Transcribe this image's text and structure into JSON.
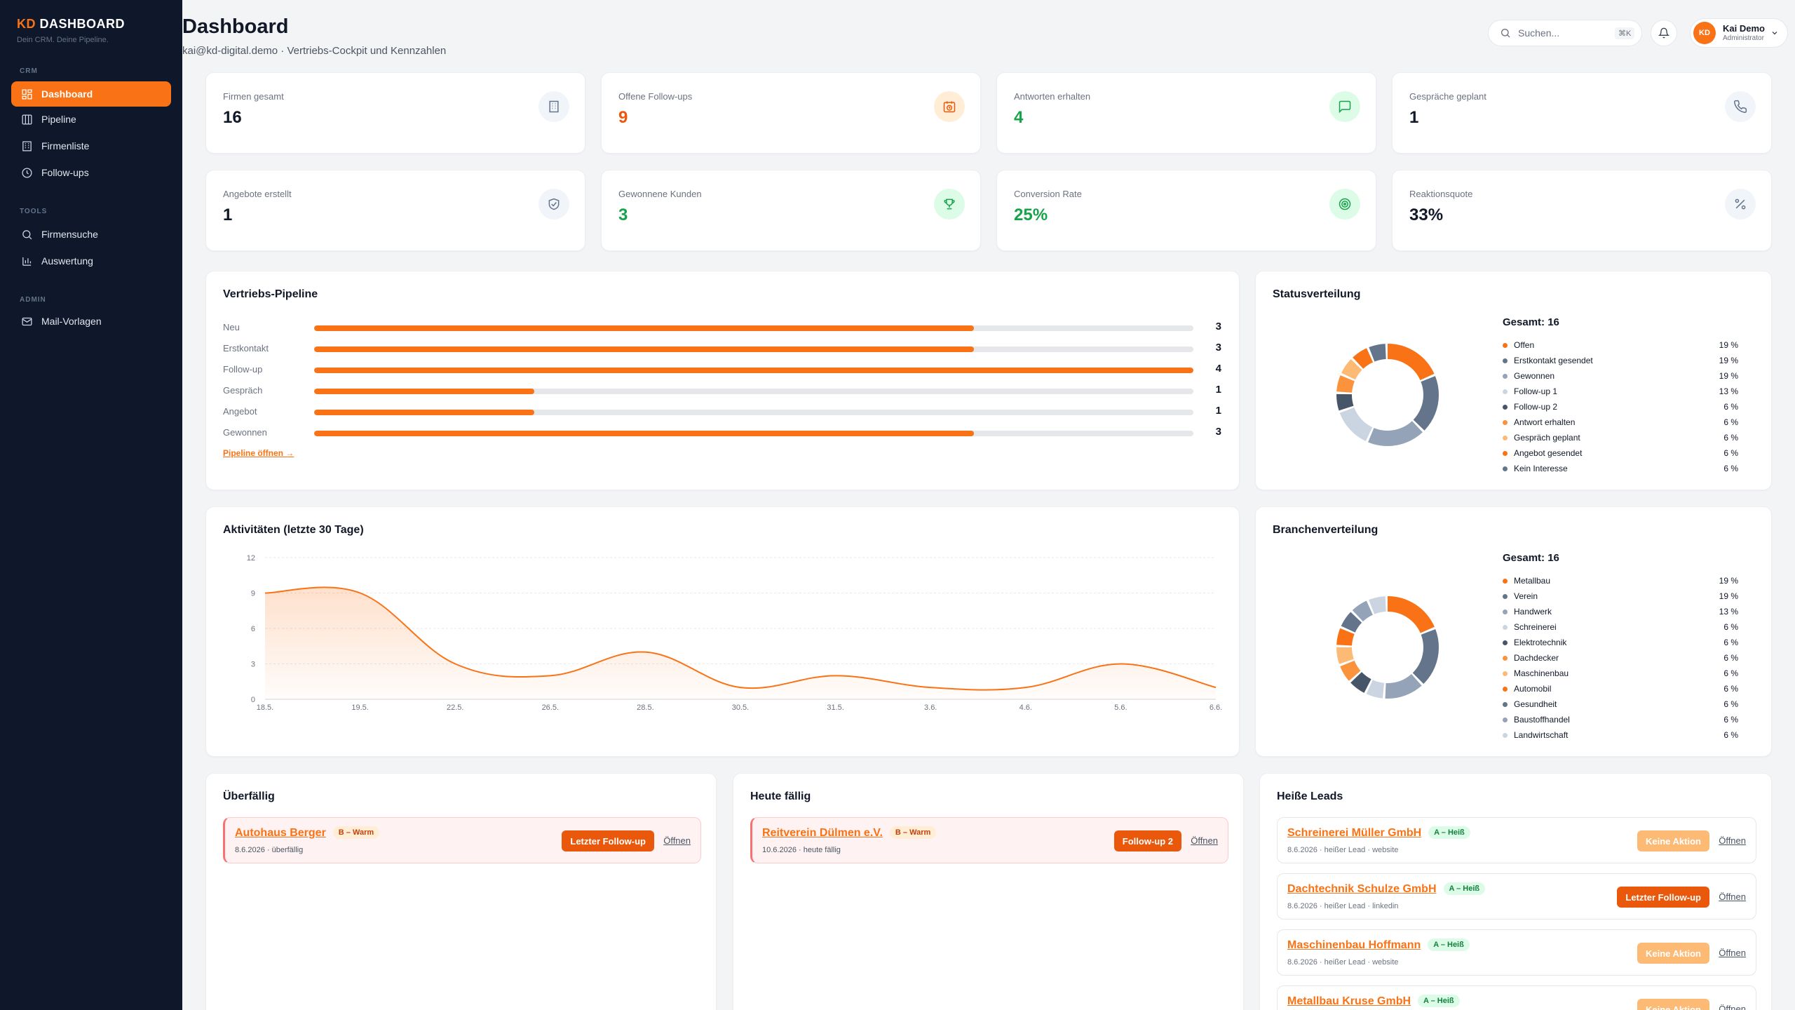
{
  "brand": {
    "prefix": "KD",
    "name": "DASHBOARD",
    "tagline": "Dein CRM. Deine Pipeline."
  },
  "sidebar": {
    "sections": [
      "CRM",
      "TOOLS",
      "ADMIN"
    ],
    "items": [
      {
        "label": "Dashboard",
        "icon": "dashboard-icon",
        "active": true
      },
      {
        "label": "Pipeline",
        "icon": "columns-icon"
      },
      {
        "label": "Firmenliste",
        "icon": "building-icon"
      },
      {
        "label": "Follow-ups",
        "icon": "clock-icon"
      },
      {
        "label": "Firmensuche",
        "icon": "search-icon"
      },
      {
        "label": "Auswertung",
        "icon": "bar-chart-icon"
      },
      {
        "label": "Mail-Vorlagen",
        "icon": "mail-icon"
      }
    ]
  },
  "header": {
    "title": "Dashboard",
    "subtitle": "kai@kd-digital.demo · Vertriebs-Cockpit und Kennzahlen",
    "search_placeholder": "Suchen...",
    "search_shortcut": "⌘K",
    "user_initials": "KD",
    "user_name": "Kai Demo",
    "user_role": "Administrator"
  },
  "kpis": [
    {
      "label": "Firmen gesamt",
      "value": "16",
      "icon": "building-icon"
    },
    {
      "label": "Offene Follow-ups",
      "value": "9",
      "icon": "calendar-clock-icon"
    },
    {
      "label": "Antworten erhalten",
      "value": "4",
      "icon": "message-icon"
    },
    {
      "label": "Gespräche geplant",
      "value": "1",
      "icon": "phone-icon"
    },
    {
      "label": "Angebote erstellt",
      "value": "1",
      "icon": "handshake-icon"
    },
    {
      "label": "Gewonnene Kunden",
      "value": "3",
      "icon": "trophy-icon"
    },
    {
      "label": "Conversion Rate",
      "value": "25%",
      "icon": "target-icon"
    },
    {
      "label": "Reaktionsquote",
      "value": "33%",
      "icon": "percent-icon"
    }
  ],
  "pipeline": {
    "title": "Vertriebs-Pipeline",
    "link": "Pipeline öffnen →",
    "max": 4,
    "stages": [
      {
        "label": "Neu",
        "count": 3
      },
      {
        "label": "Erstkontakt",
        "count": 3
      },
      {
        "label": "Follow-up",
        "count": 4
      },
      {
        "label": "Gespräch",
        "count": 1
      },
      {
        "label": "Angebot",
        "count": 1
      },
      {
        "label": "Gewonnen",
        "count": 3
      }
    ]
  },
  "status": {
    "title": "Statusverteilung",
    "total": "Gesamt: 16",
    "items": [
      {
        "label": "Offen",
        "pct": "19 %",
        "value": 19,
        "color": "#f97316"
      },
      {
        "label": "Erstkontakt gesendet",
        "pct": "19 %",
        "value": 19,
        "color": "#64748b"
      },
      {
        "label": "Gewonnen",
        "pct": "19 %",
        "value": 19,
        "color": "#94a3b8"
      },
      {
        "label": "Follow-up 1",
        "pct": "13 %",
        "value": 13,
        "color": "#cbd5e1"
      },
      {
        "label": "Follow-up 2",
        "pct": "6 %",
        "value": 6,
        "color": "#475569"
      },
      {
        "label": "Antwort erhalten",
        "pct": "6 %",
        "value": 6,
        "color": "#fb923c"
      },
      {
        "label": "Gespräch geplant",
        "pct": "6 %",
        "value": 6,
        "color": "#fdba74"
      },
      {
        "label": "Angebot gesendet",
        "pct": "6 %",
        "value": 6,
        "color": "#f97316"
      },
      {
        "label": "Kein Interesse",
        "pct": "6 %",
        "value": 6,
        "color": "#64748b"
      }
    ]
  },
  "branches": {
    "title": "Branchenverteilung",
    "total": "Gesamt: 16",
    "items": [
      {
        "label": "Metallbau",
        "pct": "19 %",
        "value": 19,
        "color": "#f97316"
      },
      {
        "label": "Verein",
        "pct": "19 %",
        "value": 19,
        "color": "#64748b"
      },
      {
        "label": "Handwerk",
        "pct": "13 %",
        "value": 13,
        "color": "#94a3b8"
      },
      {
        "label": "Schreinerei",
        "pct": "6 %",
        "value": 6,
        "color": "#cbd5e1"
      },
      {
        "label": "Elektrotechnik",
        "pct": "6 %",
        "value": 6,
        "color": "#475569"
      },
      {
        "label": "Dachdecker",
        "pct": "6 %",
        "value": 6,
        "color": "#fb923c"
      },
      {
        "label": "Maschinenbau",
        "pct": "6 %",
        "value": 6,
        "color": "#fdba74"
      },
      {
        "label": "Automobil",
        "pct": "6 %",
        "value": 6,
        "color": "#f97316"
      },
      {
        "label": "Gesundheit",
        "pct": "6 %",
        "value": 6,
        "color": "#64748b"
      },
      {
        "label": "Baustoffhandel",
        "pct": "6 %",
        "value": 6,
        "color": "#94a3b8"
      },
      {
        "label": "Landwirtschaft",
        "pct": "6 %",
        "value": 6,
        "color": "#cbd5e1"
      }
    ]
  },
  "chart_data": {
    "type": "area",
    "title": "Aktivitäten (letzte 30 Tage)",
    "categories": [
      "18.5.",
      "19.5.",
      "22.5.",
      "26.5.",
      "28.5.",
      "30.5.",
      "31.5.",
      "3.6.",
      "4.6.",
      "5.6.",
      "6.6."
    ],
    "values": [
      9,
      9,
      3,
      2,
      4,
      1,
      2,
      1,
      1,
      3,
      1
    ],
    "yticks": [
      0,
      3,
      6,
      9,
      12
    ],
    "ylim": [
      0,
      12
    ],
    "grid": true,
    "color": "#f97316"
  },
  "overdue": {
    "title": "Überfällig",
    "items": [
      {
        "name": "Autohaus Berger",
        "badge": "B – Warm",
        "meta": "8.6.2026 · überfällig",
        "action": "Letzter Follow-up",
        "open": "Öffnen"
      }
    ]
  },
  "today": {
    "title": "Heute fällig",
    "items": [
      {
        "name": "Reitverein Dülmen e.V.",
        "badge": "B – Warm",
        "meta": "10.6.2026 · heute fällig",
        "action": "Follow-up 2",
        "open": "Öffnen"
      }
    ]
  },
  "hot_leads": {
    "title": "Heiße Leads",
    "items": [
      {
        "name": "Schreinerei Müller GmbH",
        "badge": "A – Heiß",
        "meta": "8.6.2026 · heißer Lead · website",
        "action": "Keine Aktion",
        "action_style": "muted",
        "open": "Öffnen"
      },
      {
        "name": "Dachtechnik Schulze GmbH",
        "badge": "A – Heiß",
        "meta": "8.6.2026 · heißer Lead · linkedin",
        "action": "Letzter Follow-up",
        "action_style": "primary",
        "open": "Öffnen"
      },
      {
        "name": "Maschinenbau Hoffmann",
        "badge": "A – Heiß",
        "meta": "8.6.2026 · heißer Lead · website",
        "action": "Keine Aktion",
        "action_style": "muted",
        "open": "Öffnen"
      },
      {
        "name": "Metallbau Kruse GmbH",
        "badge": "A – Heiß",
        "meta": "",
        "action": "Keine Aktion",
        "action_style": "muted",
        "open": "Öffnen"
      }
    ]
  }
}
